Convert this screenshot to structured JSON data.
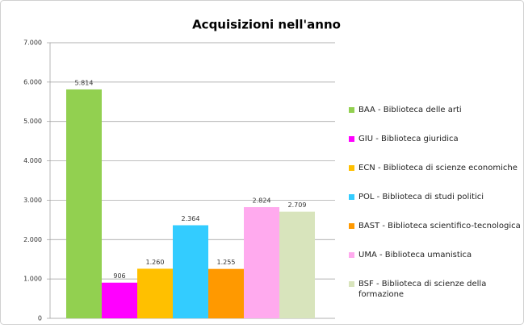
{
  "chart_data": {
    "type": "bar",
    "title": "Acquisizioni nell'anno",
    "categories": [
      null
    ],
    "series": [
      {
        "name": "BAA - Biblioteca delle arti",
        "color": "#92d050",
        "values": [
          5814
        ],
        "value_labels": [
          "5.814"
        ]
      },
      {
        "name": "GIU - Biblioteca giuridica",
        "color": "#ff00ff",
        "values": [
          906
        ]
      },
      {
        "name": "ECN - Biblioteca di scienze economiche",
        "color": "#ffc000",
        "values": [
          1260
        ],
        "value_labels": [
          "1.260"
        ]
      },
      {
        "name": "POL - Biblioteca di studi politici",
        "color": "#33ccff",
        "values": [
          2364
        ],
        "value_labels": [
          "2.364"
        ]
      },
      {
        "name": "BAST - Biblioteca scientifico-tecnologica",
        "color": "#ff9900",
        "values": [
          1255
        ],
        "value_labels": [
          "1.255"
        ]
      },
      {
        "name": "UMA - Biblioteca umanistica",
        "color": "#ffaaee",
        "values": [
          2824
        ],
        "value_labels": [
          "2.824"
        ]
      },
      {
        "name": "BSF - Biblioteca di scienze della formazione",
        "color": "#d8e4bc",
        "values": [
          2709
        ],
        "value_labels": [
          "2.709"
        ]
      }
    ],
    "ylim": [
      0,
      7000
    ],
    "yticks": [
      0,
      {
        "value": 1000,
        "label": "1.000"
      },
      {
        "value": 2000,
        "label": "2.000"
      },
      {
        "value": 3000,
        "label": "3.000"
      },
      {
        "value": 4000,
        "label": "4.000"
      },
      {
        "value": 5000,
        "label": "5.000"
      },
      {
        "value": 6000,
        "label": "6.000"
      },
      {
        "value": 7000,
        "label": "7.000"
      }
    ],
    "grid": true,
    "legend": "right"
  }
}
